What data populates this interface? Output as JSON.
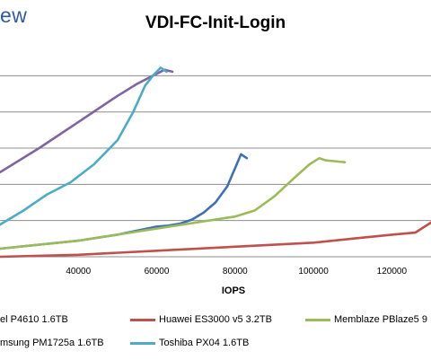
{
  "header": {
    "brand": "ew"
  },
  "chart_data": {
    "type": "line",
    "title": "VDI-FC-Init-Login",
    "xlabel": "IOPS",
    "ylabel": "",
    "x_ticks": [
      "40000",
      "60000",
      "80000",
      "100000",
      "120000"
    ],
    "xlim": [
      20000,
      130000
    ],
    "ylim": [
      0,
      1.0
    ],
    "grid": "horizontal",
    "legend_position": "bottom",
    "series": [
      {
        "name": "el P4610 1.6TB",
        "color": "#3f6fb5",
        "x": [
          20000,
          40000,
          50000,
          55000,
          60000,
          63000,
          66000,
          69000,
          72000,
          75000,
          78000,
          80000,
          81500,
          83000
        ],
        "y": [
          0.04,
          0.08,
          0.11,
          0.13,
          0.15,
          0.155,
          0.165,
          0.185,
          0.22,
          0.27,
          0.35,
          0.44,
          0.51,
          0.49
        ]
      },
      {
        "name": "Huawei ES3000 v5 3.2TB",
        "color": "#c0504d",
        "x": [
          20000,
          40000,
          60000,
          80000,
          100000,
          110000,
          120000,
          126000,
          130000
        ],
        "y": [
          0.0,
          0.01,
          0.03,
          0.05,
          0.07,
          0.09,
          0.11,
          0.12,
          0.17
        ]
      },
      {
        "name": "Memblaze PBlaze5 9",
        "color": "#9bbb59",
        "x": [
          20000,
          40000,
          60000,
          80000,
          85000,
          90000,
          95000,
          99000,
          101500,
          103000,
          108000
        ],
        "y": [
          0.04,
          0.08,
          0.14,
          0.2,
          0.23,
          0.3,
          0.39,
          0.46,
          0.49,
          0.48,
          0.47
        ]
      },
      {
        "name": "msung PM1725a 1.6TB",
        "color": "#8064a2",
        "x": [
          20000,
          30000,
          40000,
          50000,
          55000,
          60000,
          62000,
          64000
        ],
        "y": [
          0.42,
          0.54,
          0.67,
          0.8,
          0.86,
          0.91,
          0.93,
          0.92
        ]
      },
      {
        "name": "Toshiba PX04 1.6TB",
        "color": "#4bacc6",
        "x": [
          20000,
          26000,
          32000,
          38000,
          44000,
          50000,
          54000,
          57000,
          59000,
          61000,
          62500
        ],
        "y": [
          0.16,
          0.23,
          0.31,
          0.37,
          0.46,
          0.58,
          0.72,
          0.85,
          0.9,
          0.94,
          0.92
        ]
      }
    ]
  }
}
